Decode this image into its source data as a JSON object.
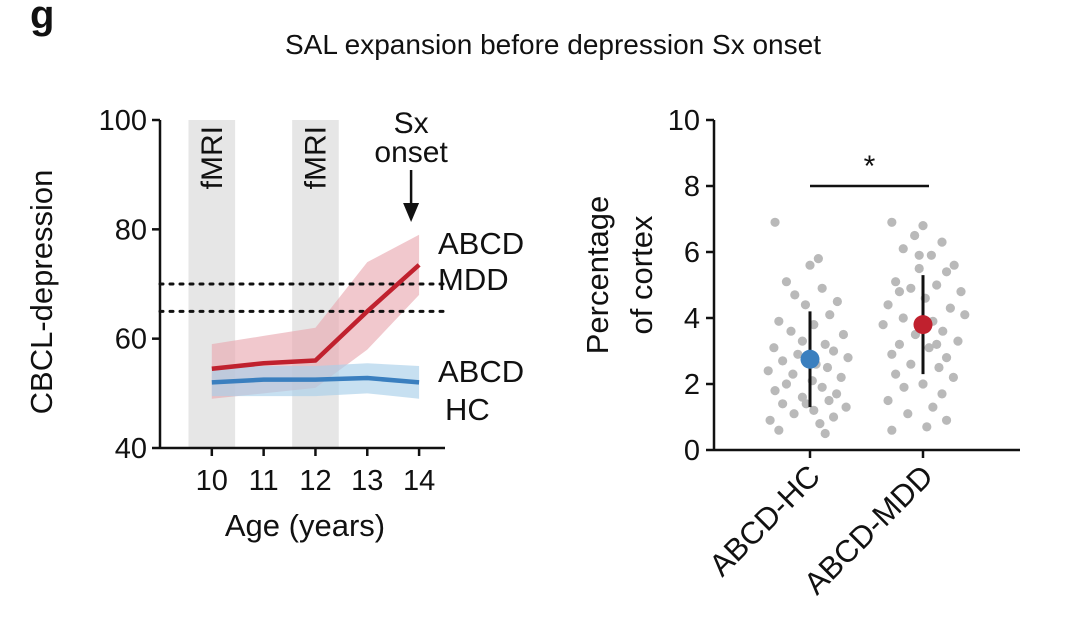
{
  "panel_label": "g",
  "figure_title": "SAL expansion before depression Sx onset",
  "colors": {
    "mdd": "#c0212e",
    "hc": "#3a7fbf",
    "band_mdd": "#e8a6ae",
    "band_hc": "#a9d0e9",
    "shade": "#e6e6e6",
    "points": "#b9b9b9"
  },
  "chart_data": [
    {
      "type": "line",
      "title": "",
      "xlabel": "Age (years)",
      "ylabel": "CBCL-depression",
      "x": [
        10,
        11,
        12,
        13,
        14
      ],
      "x_ticks": [
        "10",
        "11",
        "12",
        "13",
        "14"
      ],
      "xlim": [
        9.0,
        14.5
      ],
      "ylim": [
        40,
        100
      ],
      "y_ticks": [
        "40",
        "60",
        "80",
        "100"
      ],
      "shaded_regions": [
        {
          "label": "fMRI",
          "x_range": [
            9.55,
            10.45
          ]
        },
        {
          "label": "fMRI",
          "x_range": [
            11.55,
            12.45
          ]
        }
      ],
      "reference_lines": [
        65,
        70
      ],
      "arrow_annotation": {
        "text_line1": "Sx",
        "text_line2": "onset",
        "x": 14
      },
      "series": [
        {
          "name_line1": "ABCD",
          "name_line2": "MDD",
          "x": [
            10,
            11,
            12,
            13,
            14
          ],
          "values": [
            54.5,
            55.5,
            56,
            65,
            73.5
          ],
          "lower": [
            49,
            50,
            51,
            58,
            68
          ],
          "upper": [
            59,
            60.5,
            62,
            74,
            79
          ]
        },
        {
          "name_line1": "ABCD",
          "name_line2": "HC",
          "x": [
            10,
            11,
            12,
            13,
            14
          ],
          "values": [
            52,
            52.5,
            52.5,
            52.8,
            52
          ],
          "lower": [
            49.5,
            49.5,
            49.5,
            50,
            49
          ],
          "upper": [
            54.5,
            55,
            55,
            55.5,
            55
          ]
        }
      ]
    },
    {
      "type": "scatter",
      "title": "",
      "xlabel": "",
      "ylabel_line1": "Percentage",
      "ylabel_line2": "of cortex",
      "categories": [
        "ABCD-HC",
        "ABCD-MDD"
      ],
      "ylim": [
        0,
        10
      ],
      "y_ticks": [
        "0",
        "2",
        "4",
        "6",
        "8",
        "10"
      ],
      "significance": {
        "text": "*",
        "between": [
          "ABCD-HC",
          "ABCD-MDD"
        ],
        "y": 8
      },
      "groups": [
        {
          "name": "ABCD-HC",
          "mean": 2.75,
          "err_low": 1.3,
          "err_high": 4.2,
          "points": [
            [
              -0.92,
              6.9
            ],
            [
              0.22,
              5.8
            ],
            [
              0.0,
              5.6
            ],
            [
              -0.62,
              5.1
            ],
            [
              0.32,
              4.9
            ],
            [
              -0.4,
              4.7
            ],
            [
              0.72,
              4.5
            ],
            [
              -0.12,
              4.4
            ],
            [
              0.52,
              4.1
            ],
            [
              -0.82,
              3.9
            ],
            [
              0.1,
              3.8
            ],
            [
              -0.5,
              3.6
            ],
            [
              0.88,
              3.5
            ],
            [
              -0.2,
              3.3
            ],
            [
              0.4,
              3.2
            ],
            [
              -0.95,
              3.1
            ],
            [
              0.62,
              3.0
            ],
            [
              -0.32,
              2.9
            ],
            [
              1.0,
              2.8
            ],
            [
              -0.72,
              2.7
            ],
            [
              0.16,
              2.6
            ],
            [
              0.46,
              2.5
            ],
            [
              -1.1,
              2.4
            ],
            [
              -0.45,
              2.3
            ],
            [
              0.82,
              2.2
            ],
            [
              0.06,
              2.1
            ],
            [
              -0.62,
              2.0
            ],
            [
              0.32,
              1.9
            ],
            [
              -0.92,
              1.8
            ],
            [
              0.7,
              1.7
            ],
            [
              -0.2,
              1.6
            ],
            [
              0.5,
              1.5
            ],
            [
              -0.72,
              1.4
            ],
            [
              0.95,
              1.3
            ],
            [
              0.1,
              1.2
            ],
            [
              -0.42,
              1.1
            ],
            [
              0.62,
              1.0
            ],
            [
              -1.05,
              0.9
            ],
            [
              0.26,
              0.8
            ],
            [
              -0.82,
              0.6
            ],
            [
              0.4,
              0.5
            ],
            [
              -0.1,
              1.4
            ]
          ]
        },
        {
          "name": "ABCD-MDD",
          "mean": 3.8,
          "err_low": 2.3,
          "err_high": 5.3,
          "points": [
            [
              -0.82,
              6.9
            ],
            [
              0.0,
              6.8
            ],
            [
              -0.22,
              6.5
            ],
            [
              0.5,
              6.3
            ],
            [
              -0.52,
              6.1
            ],
            [
              0.22,
              5.9
            ],
            [
              0.82,
              5.6
            ],
            [
              -0.1,
              5.5
            ],
            [
              0.62,
              5.4
            ],
            [
              -0.72,
              5.1
            ],
            [
              0.36,
              5.0
            ],
            [
              -0.32,
              4.9
            ],
            [
              1.0,
              4.8
            ],
            [
              0.06,
              4.6
            ],
            [
              -0.92,
              4.4
            ],
            [
              0.72,
              4.3
            ],
            [
              1.1,
              4.1
            ],
            [
              -0.52,
              4.0
            ],
            [
              0.26,
              3.9
            ],
            [
              -1.05,
              3.8
            ],
            [
              0.52,
              3.6
            ],
            [
              -0.2,
              3.5
            ],
            [
              0.92,
              3.3
            ],
            [
              -0.62,
              3.2
            ],
            [
              0.16,
              3.1
            ],
            [
              -0.82,
              2.9
            ],
            [
              0.62,
              2.8
            ],
            [
              -0.32,
              2.6
            ],
            [
              0.42,
              2.5
            ],
            [
              -0.72,
              2.3
            ],
            [
              0.8,
              2.2
            ],
            [
              0.0,
              2.0
            ],
            [
              -0.5,
              1.9
            ],
            [
              0.5,
              1.7
            ],
            [
              -0.92,
              1.5
            ],
            [
              0.26,
              1.3
            ],
            [
              -0.4,
              1.1
            ],
            [
              0.62,
              0.9
            ],
            [
              0.1,
              0.7
            ],
            [
              -0.82,
              0.6
            ],
            [
              -0.62,
              4.8
            ],
            [
              0.36,
              3.2
            ],
            [
              -0.1,
              5.9
            ]
          ]
        }
      ]
    }
  ]
}
